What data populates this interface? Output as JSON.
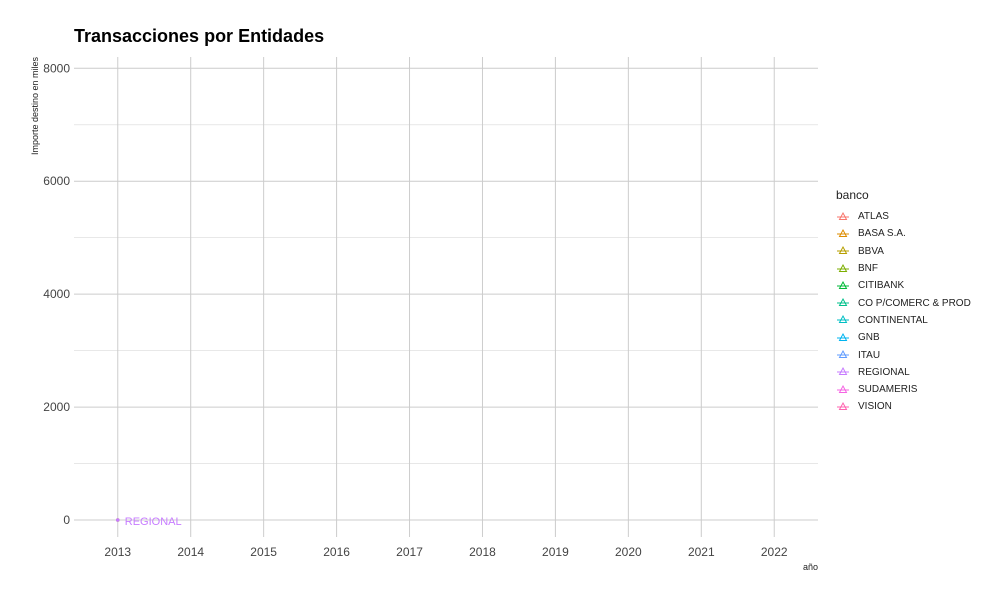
{
  "chart_data": {
    "type": "line",
    "title": "Transacciones por Entidades",
    "xlabel": "año",
    "ylabel": "Importe destino en miles",
    "x_ticks": [
      "2013",
      "2014",
      "2015",
      "2016",
      "2017",
      "2018",
      "2019",
      "2020",
      "2021",
      "2022"
    ],
    "y_ticks": [
      "0",
      "2000",
      "4000",
      "6000",
      "8000"
    ],
    "xlim": [
      2012.4,
      2022.6
    ],
    "ylim": [
      -300,
      8200
    ],
    "grid": true,
    "legend_title": "banco",
    "legend_position": "right",
    "series": [
      {
        "name": "ATLAS",
        "color": "#F8766D",
        "points": []
      },
      {
        "name": "BASA S.A.",
        "color": "#DE8C00",
        "points": []
      },
      {
        "name": "BBVA",
        "color": "#B79F00",
        "points": [
          {
            "x": 2013,
            "y": 0
          }
        ]
      },
      {
        "name": "BNF",
        "color": "#7CAE00",
        "points": []
      },
      {
        "name": "CITIBANK",
        "color": "#00BA38",
        "points": []
      },
      {
        "name": "CO P/COMERC & PROD",
        "color": "#00C08B",
        "points": []
      },
      {
        "name": "CONTINENTAL",
        "color": "#00BFC4",
        "points": []
      },
      {
        "name": "GNB",
        "color": "#00B4F0",
        "points": []
      },
      {
        "name": "ITAU",
        "color": "#619CFF",
        "points": []
      },
      {
        "name": "REGIONAL",
        "color": "#C77CFF",
        "points": [
          {
            "x": 2013,
            "y": 0
          }
        ]
      },
      {
        "name": "SUDAMERIS",
        "color": "#F564E3",
        "points": []
      },
      {
        "name": "VISION",
        "color": "#FF64B0",
        "points": []
      }
    ],
    "annotations": [
      {
        "text": "REGIONAL",
        "x": 2013,
        "y": 0,
        "color": "#C77CFF"
      }
    ]
  }
}
